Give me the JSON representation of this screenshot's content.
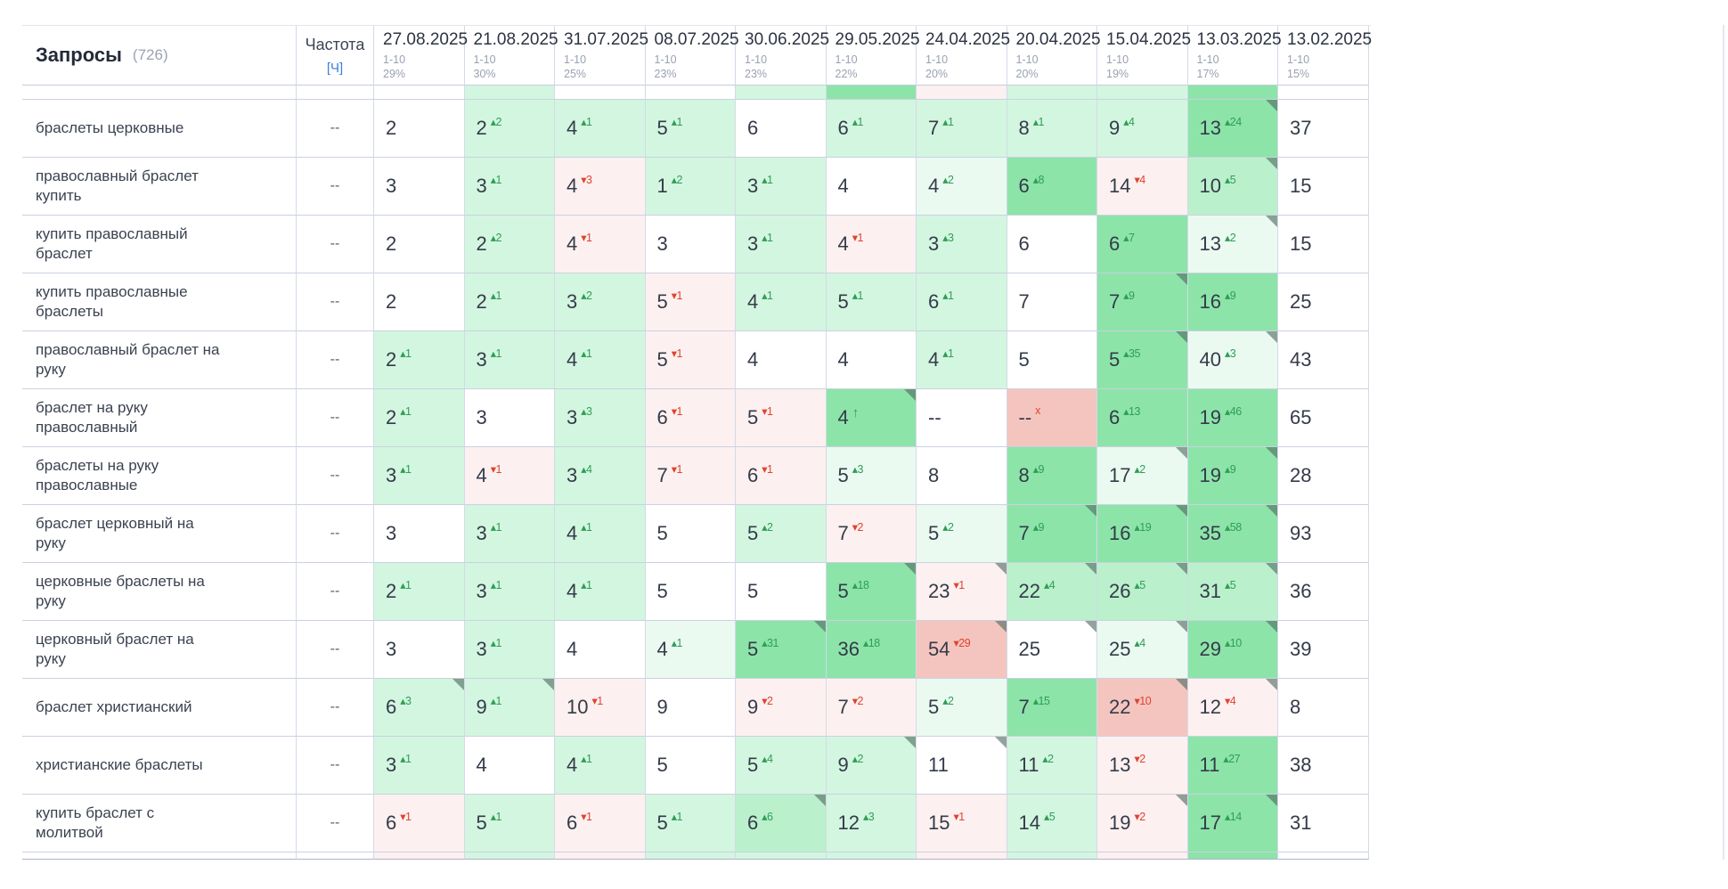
{
  "header": {
    "title": "Запросы",
    "count": "(726)",
    "frequency_label": "Частота",
    "frequency_unit": "[Ч]",
    "columns": [
      {
        "date": "27.08.2025",
        "range": "1-10",
        "percent": "29%"
      },
      {
        "date": "21.08.2025",
        "range": "1-10",
        "percent": "30%"
      },
      {
        "date": "31.07.2025",
        "range": "1-10",
        "percent": "25%"
      },
      {
        "date": "08.07.2025",
        "range": "1-10",
        "percent": "23%"
      },
      {
        "date": "30.06.2025",
        "range": "1-10",
        "percent": "23%"
      },
      {
        "date": "29.05.2025",
        "range": "1-10",
        "percent": "22%"
      },
      {
        "date": "24.04.2025",
        "range": "1-10",
        "percent": "20%"
      },
      {
        "date": "20.04.2025",
        "range": "1-10",
        "percent": "20%"
      },
      {
        "date": "15.04.2025",
        "range": "1-10",
        "percent": "19%"
      },
      {
        "date": "13.03.2025",
        "range": "1-10",
        "percent": "17%"
      },
      {
        "date": "13.02.2025",
        "range": "1-10",
        "percent": "15%"
      }
    ]
  },
  "colors": {
    "w": "#ffffff",
    "g1": "#eafaf1",
    "g2": "#d3f6e0",
    "g25": "#baf0cc",
    "g3": "#8ce4a9",
    "r1": "#fdf0f0",
    "r2": "#f4c5bf",
    "delta_up": "#2f9e55",
    "delta_down": "#e0432f"
  },
  "top_strip": [
    "w",
    "g2",
    "w",
    "w",
    "g2",
    "g3",
    "r1",
    "g2",
    "g2",
    "g3",
    "w"
  ],
  "bottom_strip": [
    "r1",
    "g2",
    "r1",
    "g2",
    "g2",
    "g2",
    "r1",
    "g2",
    "r1",
    "g3",
    "w"
  ],
  "rows": [
    {
      "query": "браслеты церковные",
      "frequency": "--",
      "cells": [
        {
          "v": "2",
          "bg": "w"
        },
        {
          "v": "2",
          "d": "+2",
          "bg": "g2"
        },
        {
          "v": "4",
          "d": "+1",
          "bg": "g2"
        },
        {
          "v": "5",
          "d": "+1",
          "bg": "g2"
        },
        {
          "v": "6",
          "bg": "w"
        },
        {
          "v": "6",
          "d": "+1",
          "bg": "g2"
        },
        {
          "v": "7",
          "d": "+1",
          "bg": "g2"
        },
        {
          "v": "8",
          "d": "+1",
          "bg": "g2"
        },
        {
          "v": "9",
          "d": "+4",
          "bg": "g2"
        },
        {
          "v": "13",
          "d": "+24",
          "bg": "g3",
          "c": true
        },
        {
          "v": "37",
          "bg": "w"
        }
      ]
    },
    {
      "query": "православный браслет купить",
      "frequency": "--",
      "cells": [
        {
          "v": "3",
          "bg": "w"
        },
        {
          "v": "3",
          "d": "+1",
          "bg": "g2"
        },
        {
          "v": "4",
          "d": "-3",
          "bg": "r1"
        },
        {
          "v": "1",
          "d": "+2",
          "bg": "g2"
        },
        {
          "v": "3",
          "d": "+1",
          "bg": "g2"
        },
        {
          "v": "4",
          "bg": "w"
        },
        {
          "v": "4",
          "d": "+2",
          "bg": "g1"
        },
        {
          "v": "6",
          "d": "+8",
          "bg": "g3"
        },
        {
          "v": "14",
          "d": "-4",
          "bg": "r1"
        },
        {
          "v": "10",
          "d": "+5",
          "bg": "g25",
          "c": true
        },
        {
          "v": "15",
          "bg": "w"
        }
      ]
    },
    {
      "query": "купить православный браслет",
      "frequency": "--",
      "cells": [
        {
          "v": "2",
          "bg": "w"
        },
        {
          "v": "2",
          "d": "+2",
          "bg": "g2"
        },
        {
          "v": "4",
          "d": "-1",
          "bg": "r1"
        },
        {
          "v": "3",
          "bg": "w"
        },
        {
          "v": "3",
          "d": "+1",
          "bg": "g2"
        },
        {
          "v": "4",
          "d": "-1",
          "bg": "r1"
        },
        {
          "v": "3",
          "d": "+3",
          "bg": "g2"
        },
        {
          "v": "6",
          "bg": "w"
        },
        {
          "v": "6",
          "d": "+7",
          "bg": "g3"
        },
        {
          "v": "13",
          "d": "+2",
          "bg": "g1",
          "c": true
        },
        {
          "v": "15",
          "bg": "w"
        }
      ]
    },
    {
      "query": "купить православные браслеты",
      "frequency": "--",
      "cells": [
        {
          "v": "2",
          "bg": "w"
        },
        {
          "v": "2",
          "d": "+1",
          "bg": "g2"
        },
        {
          "v": "3",
          "d": "+2",
          "bg": "g2"
        },
        {
          "v": "5",
          "d": "-1",
          "bg": "r1"
        },
        {
          "v": "4",
          "d": "+1",
          "bg": "g2"
        },
        {
          "v": "5",
          "d": "+1",
          "bg": "g2"
        },
        {
          "v": "6",
          "d": "+1",
          "bg": "g2"
        },
        {
          "v": "7",
          "bg": "w"
        },
        {
          "v": "7",
          "d": "+9",
          "bg": "g3",
          "c": true
        },
        {
          "v": "16",
          "d": "+9",
          "bg": "g3"
        },
        {
          "v": "25",
          "bg": "w"
        }
      ]
    },
    {
      "query": "православный браслет на руку",
      "frequency": "--",
      "cells": [
        {
          "v": "2",
          "d": "+1",
          "bg": "g2"
        },
        {
          "v": "3",
          "d": "+1",
          "bg": "g2"
        },
        {
          "v": "4",
          "d": "+1",
          "bg": "g2"
        },
        {
          "v": "5",
          "d": "-1",
          "bg": "r1"
        },
        {
          "v": "4",
          "bg": "w"
        },
        {
          "v": "4",
          "bg": "w"
        },
        {
          "v": "4",
          "d": "+1",
          "bg": "g2"
        },
        {
          "v": "5",
          "bg": "w"
        },
        {
          "v": "5",
          "d": "+35",
          "bg": "g3",
          "c": true
        },
        {
          "v": "40",
          "d": "+3",
          "bg": "g1",
          "c": true
        },
        {
          "v": "43",
          "bg": "w"
        }
      ]
    },
    {
      "query": "браслет на руку православный",
      "frequency": "--",
      "cells": [
        {
          "v": "2",
          "d": "+1",
          "bg": "g2"
        },
        {
          "v": "3",
          "bg": "w"
        },
        {
          "v": "3",
          "d": "+3",
          "bg": "g2"
        },
        {
          "v": "6",
          "d": "-1",
          "bg": "r1"
        },
        {
          "v": "5",
          "d": "-1",
          "bg": "r1"
        },
        {
          "v": "4",
          "d": "up",
          "bg": "g3",
          "c": true
        },
        {
          "v": "--",
          "bg": "w"
        },
        {
          "v": "--",
          "d": "x",
          "bg": "r2"
        },
        {
          "v": "6",
          "d": "+13",
          "bg": "g3"
        },
        {
          "v": "19",
          "d": "+46",
          "bg": "g3"
        },
        {
          "v": "65",
          "bg": "w"
        }
      ]
    },
    {
      "query": "браслеты на руку православные",
      "frequency": "--",
      "cells": [
        {
          "v": "3",
          "d": "+1",
          "bg": "g2"
        },
        {
          "v": "4",
          "d": "-1",
          "bg": "r1"
        },
        {
          "v": "3",
          "d": "+4",
          "bg": "g2"
        },
        {
          "v": "7",
          "d": "-1",
          "bg": "r1"
        },
        {
          "v": "6",
          "d": "-1",
          "bg": "r1"
        },
        {
          "v": "5",
          "d": "+3",
          "bg": "g1"
        },
        {
          "v": "8",
          "bg": "w"
        },
        {
          "v": "8",
          "d": "+9",
          "bg": "g3"
        },
        {
          "v": "17",
          "d": "+2",
          "bg": "g1",
          "c": true
        },
        {
          "v": "19",
          "d": "+9",
          "bg": "g3",
          "c": true
        },
        {
          "v": "28",
          "bg": "w"
        }
      ]
    },
    {
      "query": "браслет церковный на руку",
      "frequency": "--",
      "cells": [
        {
          "v": "3",
          "bg": "w"
        },
        {
          "v": "3",
          "d": "+1",
          "bg": "g2"
        },
        {
          "v": "4",
          "d": "+1",
          "bg": "g2"
        },
        {
          "v": "5",
          "bg": "w"
        },
        {
          "v": "5",
          "d": "+2",
          "bg": "g2"
        },
        {
          "v": "7",
          "d": "-2",
          "bg": "r1"
        },
        {
          "v": "5",
          "d": "+2",
          "bg": "g1"
        },
        {
          "v": "7",
          "d": "+9",
          "bg": "g3",
          "c": true
        },
        {
          "v": "16",
          "d": "+19",
          "bg": "g3",
          "c": true
        },
        {
          "v": "35",
          "d": "+58",
          "bg": "g3",
          "c": true
        },
        {
          "v": "93",
          "bg": "w"
        }
      ]
    },
    {
      "query": "церковные браслеты на руку",
      "frequency": "--",
      "cells": [
        {
          "v": "2",
          "d": "+1",
          "bg": "g2"
        },
        {
          "v": "3",
          "d": "+1",
          "bg": "g2"
        },
        {
          "v": "4",
          "d": "+1",
          "bg": "g2"
        },
        {
          "v": "5",
          "bg": "w"
        },
        {
          "v": "5",
          "bg": "w"
        },
        {
          "v": "5",
          "d": "+18",
          "bg": "g3",
          "c": true
        },
        {
          "v": "23",
          "d": "-1",
          "bg": "r1",
          "c": true
        },
        {
          "v": "22",
          "d": "+4",
          "bg": "g25",
          "c": true
        },
        {
          "v": "26",
          "d": "+5",
          "bg": "g25",
          "c": true
        },
        {
          "v": "31",
          "d": "+5",
          "bg": "g25",
          "c": true
        },
        {
          "v": "36",
          "bg": "w"
        }
      ]
    },
    {
      "query": "церковный браслет на руку",
      "frequency": "--",
      "cells": [
        {
          "v": "3",
          "bg": "w"
        },
        {
          "v": "3",
          "d": "+1",
          "bg": "g2"
        },
        {
          "v": "4",
          "bg": "w"
        },
        {
          "v": "4",
          "d": "+1",
          "bg": "g1"
        },
        {
          "v": "5",
          "d": "+31",
          "bg": "g3",
          "c": true
        },
        {
          "v": "36",
          "d": "+18",
          "bg": "g3"
        },
        {
          "v": "54",
          "d": "-29",
          "bg": "r2",
          "c": true
        },
        {
          "v": "25",
          "bg": "w",
          "c": true
        },
        {
          "v": "25",
          "d": "+4",
          "bg": "g1",
          "c": true
        },
        {
          "v": "29",
          "d": "+10",
          "bg": "g3",
          "c": true
        },
        {
          "v": "39",
          "bg": "w"
        }
      ]
    },
    {
      "query": "браслет христианский",
      "frequency": "--",
      "cells": [
        {
          "v": "6",
          "d": "+3",
          "bg": "g2",
          "c": true
        },
        {
          "v": "9",
          "d": "+1",
          "bg": "g2",
          "c": true
        },
        {
          "v": "10",
          "d": "-1",
          "bg": "r1"
        },
        {
          "v": "9",
          "bg": "w"
        },
        {
          "v": "9",
          "d": "-2",
          "bg": "r1"
        },
        {
          "v": "7",
          "d": "-2",
          "bg": "r1"
        },
        {
          "v": "5",
          "d": "+2",
          "bg": "g1"
        },
        {
          "v": "7",
          "d": "+15",
          "bg": "g3"
        },
        {
          "v": "22",
          "d": "-10",
          "bg": "r2",
          "c": true
        },
        {
          "v": "12",
          "d": "-4",
          "bg": "r1",
          "c": true
        },
        {
          "v": "8",
          "bg": "w"
        }
      ]
    },
    {
      "query": "христианские браслеты",
      "frequency": "--",
      "cells": [
        {
          "v": "3",
          "d": "+1",
          "bg": "g2"
        },
        {
          "v": "4",
          "bg": "w"
        },
        {
          "v": "4",
          "d": "+1",
          "bg": "g2"
        },
        {
          "v": "5",
          "bg": "w"
        },
        {
          "v": "5",
          "d": "+4",
          "bg": "g2"
        },
        {
          "v": "9",
          "d": "+2",
          "bg": "g2",
          "c": true
        },
        {
          "v": "11",
          "bg": "w",
          "c": true
        },
        {
          "v": "11",
          "d": "+2",
          "bg": "g2"
        },
        {
          "v": "13",
          "d": "-2",
          "bg": "r1"
        },
        {
          "v": "11",
          "d": "+27",
          "bg": "g3"
        },
        {
          "v": "38",
          "bg": "w"
        }
      ]
    },
    {
      "query": "купить браслет с молитвой",
      "frequency": "--",
      "cells": [
        {
          "v": "6",
          "d": "-1",
          "bg": "r1"
        },
        {
          "v": "5",
          "d": "+1",
          "bg": "g2"
        },
        {
          "v": "6",
          "d": "-1",
          "bg": "r1"
        },
        {
          "v": "5",
          "d": "+1",
          "bg": "g2"
        },
        {
          "v": "6",
          "d": "+6",
          "bg": "g25",
          "c": true
        },
        {
          "v": "12",
          "d": "+3",
          "bg": "g2"
        },
        {
          "v": "15",
          "d": "-1",
          "bg": "r1"
        },
        {
          "v": "14",
          "d": "+5",
          "bg": "g2"
        },
        {
          "v": "19",
          "d": "-2",
          "bg": "r1",
          "c": true
        },
        {
          "v": "17",
          "d": "+14",
          "bg": "g3",
          "c": true
        },
        {
          "v": "31",
          "bg": "w"
        }
      ]
    }
  ]
}
